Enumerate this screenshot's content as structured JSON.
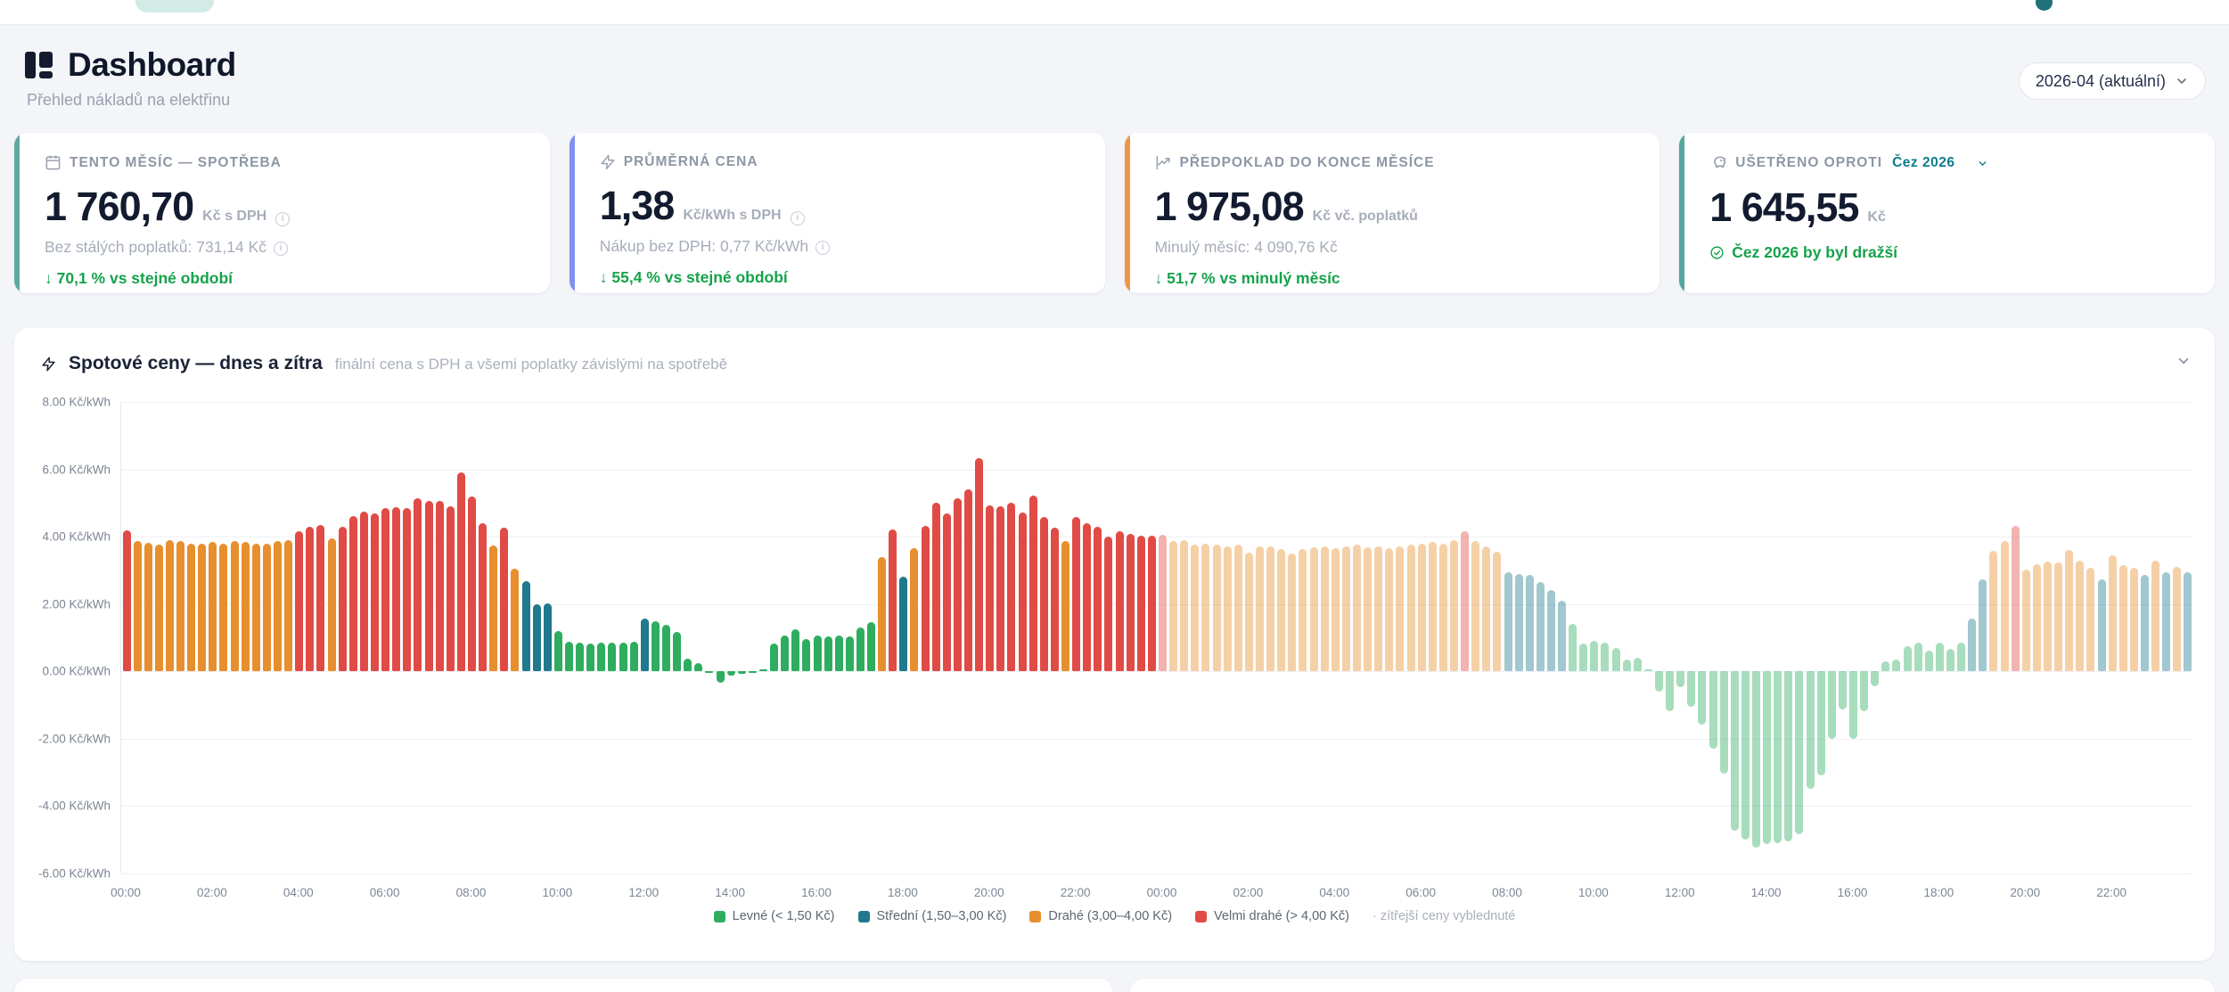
{
  "topbar": {
    "pill_color": "#d2ebe6",
    "dot_color": "#20707c"
  },
  "header": {
    "title": "Dashboard",
    "subtitle": "Přehled nákladů na elektřinu",
    "period_selector": "2026-04 (aktuální)"
  },
  "cards": [
    {
      "accent": "#5fa8a1",
      "icon": "calendar-icon",
      "label": "TENTO MĚSÍC — SPOTŘEBA",
      "value": "1 760,70",
      "unit": "Kč s DPH",
      "sub": "Bez stálých poplatků: 731,14 Kč",
      "delta": "↓ 70,1 % vs stejné období"
    },
    {
      "accent": "#7f90ee",
      "icon": "bolt-icon",
      "label": "PRŮMĚRNÁ CENA",
      "value": "1,38",
      "unit": "Kč/kWh s DPH",
      "sub": "Nákup bez DPH: 0,77 Kč/kWh",
      "delta": "↓ 55,4 % vs stejné období"
    },
    {
      "accent": "#ef9744",
      "icon": "trend-icon",
      "label": "PŘEDPOKLAD DO KONCE MĚSÍCE",
      "value": "1 975,08",
      "unit": "Kč vč. poplatků",
      "sub": "Minulý měsíc: 4 090,76 Kč",
      "delta": "↓ 51,7 % vs minulý měsíc"
    },
    {
      "accent": "#53a79e",
      "icon": "piggy-bank-icon",
      "label": "UŠETŘENO OPROTI",
      "provider": "Čez 2026",
      "value": "1 645,55",
      "unit": "Kč",
      "delta": "Čez 2026 by byl dražší"
    }
  ],
  "chart": {
    "title": "Spotové ceny — dnes a zítra",
    "subtitle": "finální cena s DPH a všemi poplatky závislými na spotřebě"
  },
  "chart_data": {
    "type": "bar",
    "unit": "Kč/kWh",
    "interval_minutes": 15,
    "ylim": [
      -6,
      8
    ],
    "grid": true,
    "ytick_values": [
      8,
      6,
      4,
      2,
      0,
      -2,
      -4,
      -6
    ],
    "ytick_labels": [
      "8.00 Kč/kWh",
      "6.00 Kč/kWh",
      "4.00 Kč/kWh",
      "2.00 Kč/kWh",
      "0.00 Kč/kWh",
      "-2.00 Kč/kWh",
      "-4.00 Kč/kWh",
      "-6.00 Kč/kWh"
    ],
    "x_tick_labels": [
      "00:00",
      "02:00",
      "04:00",
      "06:00",
      "08:00",
      "10:00",
      "12:00",
      "14:00",
      "16:00",
      "18:00",
      "20:00",
      "22:00"
    ],
    "thresholds": {
      "cheap_below": 1.5,
      "mid_below": 3.0,
      "expensive_below": 4.0
    },
    "price_colors": {
      "cheap": "#2ead5f",
      "mid": "#20798c",
      "expensive": "#e78f2e",
      "very_expensive": "#e04b45"
    },
    "days": [
      {
        "name": "dnes",
        "faded": false,
        "values": [
          4.18,
          3.88,
          3.82,
          3.76,
          3.9,
          3.86,
          3.8,
          3.78,
          3.84,
          3.8,
          3.88,
          3.84,
          3.78,
          3.8,
          3.86,
          3.9,
          4.15,
          4.29,
          4.35,
          3.95,
          4.3,
          4.6,
          4.75,
          4.7,
          4.85,
          4.87,
          4.85,
          5.15,
          5.05,
          5.05,
          4.9,
          5.9,
          5.2,
          4.4,
          3.74,
          4.26,
          3.04,
          2.67,
          1.98,
          2.02,
          1.19,
          0.88,
          0.85,
          0.83,
          0.86,
          0.84,
          0.85,
          0.87,
          1.55,
          1.48,
          1.37,
          1.17,
          0.37,
          0.23,
          -0.05,
          -0.35,
          -0.12,
          -0.08,
          -0.03,
          0.05,
          0.83,
          1.05,
          1.25,
          0.95,
          1.05,
          1.03,
          1.06,
          1.04,
          1.3,
          1.45,
          3.4,
          4.2,
          2.8,
          3.66,
          4.33,
          5.0,
          4.7,
          5.13,
          5.4,
          6.32,
          4.93,
          4.91,
          5.0,
          4.71,
          5.21,
          4.58,
          4.26,
          3.86,
          4.57,
          4.4,
          4.28,
          4.0,
          4.15,
          4.09,
          4.03,
          4.03
        ]
      },
      {
        "name": "zítra",
        "faded": true,
        "values": [
          4.06,
          3.88,
          3.89,
          3.75,
          3.79,
          3.75,
          3.71,
          3.75,
          3.53,
          3.71,
          3.7,
          3.62,
          3.5,
          3.62,
          3.68,
          3.72,
          3.65,
          3.7,
          3.76,
          3.68,
          3.72,
          3.66,
          3.71,
          3.75,
          3.8,
          3.84,
          3.78,
          3.9,
          4.15,
          3.88,
          3.72,
          3.55,
          2.95,
          2.9,
          2.85,
          2.65,
          2.4,
          2.1,
          1.4,
          0.83,
          0.9,
          0.85,
          0.7,
          0.35,
          0.4,
          0.02,
          -0.6,
          -1.2,
          -0.48,
          -1.05,
          -1.6,
          -2.3,
          -3.05,
          -4.75,
          -5.0,
          -5.25,
          -5.15,
          -5.1,
          -5.05,
          -4.85,
          -3.5,
          -3.1,
          -2.0,
          -1.15,
          -2.0,
          -1.2,
          -0.45,
          0.3,
          0.35,
          0.75,
          0.85,
          0.6,
          0.85,
          0.66,
          0.84,
          1.55,
          2.74,
          3.58,
          3.88,
          4.32,
          3.03,
          3.19,
          3.27,
          3.23,
          3.61,
          3.29,
          3.08,
          2.73,
          3.45,
          3.14,
          3.08,
          2.85,
          3.29,
          2.95,
          3.1,
          2.95
        ]
      }
    ],
    "legend": [
      {
        "color": "#2ead5f",
        "label": "Levné (< 1,50 Kč)"
      },
      {
        "color": "#20798c",
        "label": "Střední (1,50–3,00 Kč)"
      },
      {
        "color": "#e78f2e",
        "label": "Drahé (3,00–4,00 Kč)"
      },
      {
        "color": "#e04b45",
        "label": "Velmi drahé (> 4,00 Kč)"
      }
    ],
    "legend_note": "· zítřejší ceny vyblednuté"
  }
}
